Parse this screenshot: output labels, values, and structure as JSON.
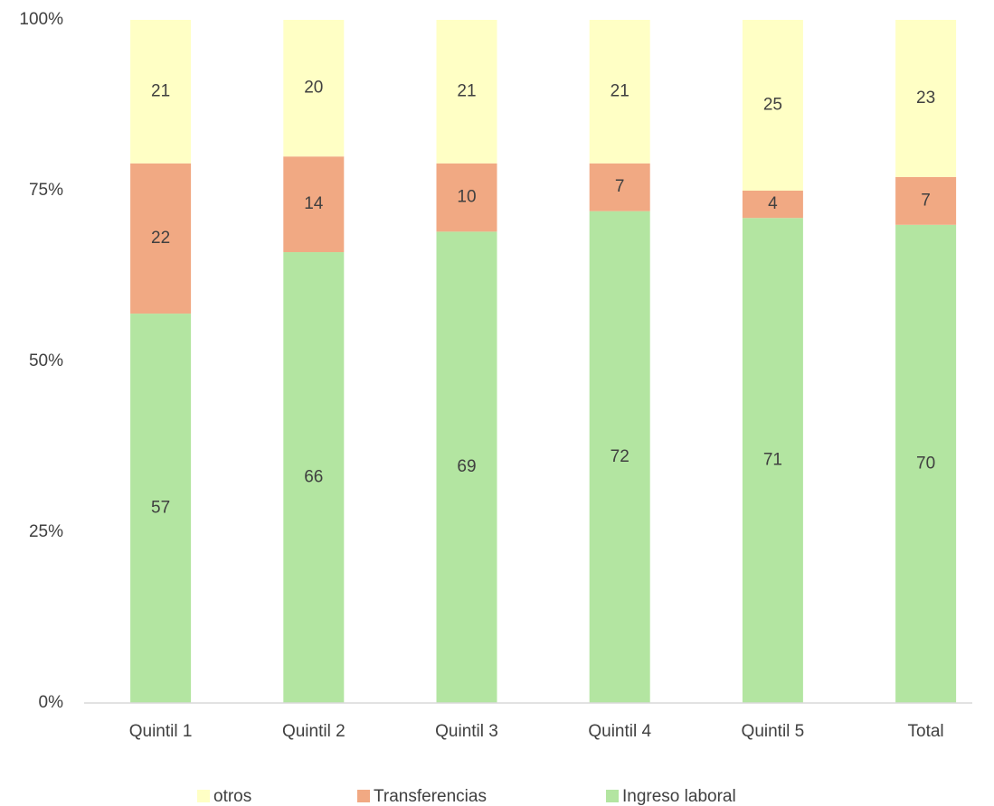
{
  "chart_data": {
    "type": "stacked_bar",
    "categories": [
      "Quintil 1",
      "Quintil 2",
      "Quintil 3",
      "Quintil 4",
      "Quintil 5",
      "Total"
    ],
    "series": [
      {
        "name": "Ingreso laboral",
        "color": "#b3e5a1",
        "values": [
          57,
          66,
          69,
          72,
          71,
          70
        ]
      },
      {
        "name": "Transferencias",
        "color": "#f1a983",
        "values": [
          22,
          14,
          10,
          7,
          4,
          7
        ]
      },
      {
        "name": "otros",
        "color": "#ffffc5",
        "values": [
          21,
          20,
          21,
          21,
          25,
          23
        ]
      }
    ],
    "ylim": [
      0,
      100
    ],
    "yticks": [
      {
        "value": 0,
        "label": "0%"
      },
      {
        "value": 25,
        "label": "25%"
      },
      {
        "value": 50,
        "label": "50%"
      },
      {
        "value": 75,
        "label": "75%"
      },
      {
        "value": 100,
        "label": "100%"
      }
    ],
    "grid": false,
    "legend": "bottom"
  }
}
